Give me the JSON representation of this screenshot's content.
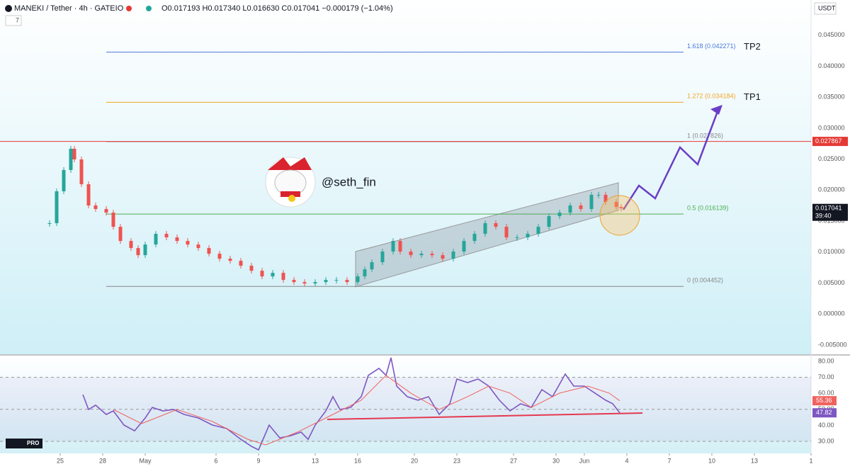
{
  "chart_data": [
    {
      "type": "candlestick",
      "title": "MANEKI / Tether · 4h · GATEIO",
      "subtitle": "O0.017193 H0.017340 L0.016630 C0.017041 −0.000179 (−1.04%)",
      "indicator_count": "7",
      "currency": "USDT",
      "watermark": "@seth_fin",
      "logo": "PRO",
      "x": [
        -0.75,
        -0.25,
        0.25,
        0.75,
        1,
        1.5,
        2,
        2.5,
        3.25,
        3.75,
        4.25,
        5,
        5.5,
        6,
        6.75,
        7.5,
        8.25,
        9,
        9.75,
        10.5,
        11.25,
        12,
        12.75,
        13.5,
        14.25,
        15,
        15.75,
        16.5,
        17.25,
        18,
        18.75,
        19.5,
        20.25,
        21,
        21.5,
        22,
        22.75,
        23.5,
        24,
        24.75,
        25.5,
        26.25,
        27,
        27.75,
        28.5,
        29.25,
        30,
        30.75,
        31.5,
        32.25,
        33,
        33.75,
        34.5,
        35.25,
        36,
        36.75,
        37.5,
        38,
        38.5,
        39.25,
        39.6
      ],
      "values": [
        0.01466,
        0.01981,
        0.02325,
        0.02668,
        0.02496,
        0.02095,
        0.01752,
        0.01695,
        0.01637,
        0.01408,
        0.01179,
        0.01065,
        0.0095,
        0.01122,
        0.01294,
        0.01237,
        0.01179,
        0.01122,
        0.01065,
        0.00973,
        0.00893,
        0.00859,
        0.00779,
        0.00698,
        0.00607,
        0.00664,
        0.0055,
        0.00515,
        0.00492,
        0.00515,
        0.0055,
        0.0055,
        0.00515,
        0.00607,
        0.00721,
        0.00836,
        0.01008,
        0.01179,
        0.01008,
        0.0095,
        0.00973,
        0.0095,
        0.00893,
        0.01008,
        0.01179,
        0.01294,
        0.01466,
        0.01408,
        0.01237,
        0.01237,
        0.01294,
        0.01408,
        0.0158,
        0.01637,
        0.01752,
        0.01695,
        0.01924,
        0.01924,
        0.01809,
        0.01729,
        0.017041
      ],
      "up_color": "#26a69a",
      "down_color": "#ef5350",
      "xlim": [
        -4.25,
        53
      ],
      "xticks": [
        {
          "value": 0,
          "label": "25"
        },
        {
          "value": 3,
          "label": "28"
        },
        {
          "value": 6,
          "label": "May"
        },
        {
          "value": 11,
          "label": "6"
        },
        {
          "value": 14,
          "label": "9"
        },
        {
          "value": 18,
          "label": "13"
        },
        {
          "value": 21,
          "label": "16"
        },
        {
          "value": 25,
          "label": "20"
        },
        {
          "value": 28,
          "label": "23"
        },
        {
          "value": 32,
          "label": "27"
        },
        {
          "value": 35,
          "label": "30"
        },
        {
          "value": 37,
          "label": "Jun"
        },
        {
          "value": 40,
          "label": "4"
        },
        {
          "value": 43,
          "label": "7"
        },
        {
          "value": 46,
          "label": "10"
        },
        {
          "value": 49,
          "label": "13"
        },
        {
          "value": 53,
          "label": "1"
        }
      ],
      "ylim": [
        -0.0065,
        0.0507
      ],
      "yticks": [
        {
          "value": -0.005,
          "label": "-0.005000"
        },
        {
          "value": 0,
          "label": "0.000000"
        },
        {
          "value": 0.005,
          "label": "0.005000"
        },
        {
          "value": 0.01,
          "label": "0.010000"
        },
        {
          "value": 0.015,
          "label": "0.015000"
        },
        {
          "value": 0.02,
          "label": "0.020000"
        },
        {
          "value": 0.025,
          "label": "0.025000"
        },
        {
          "value": 0.03,
          "label": "0.030000"
        },
        {
          "value": 0.035,
          "label": "0.035000"
        },
        {
          "value": 0.04,
          "label": "0.040000"
        },
        {
          "value": 0.045,
          "label": "0.045000"
        }
      ],
      "fib_levels": [
        {
          "label": "1.618 (0.042271)",
          "value": 0.042271,
          "color": "#4a78d8"
        },
        {
          "label": "1.272 (0.034184)",
          "value": 0.034184,
          "color": "#f5a623"
        },
        {
          "label": "1 (0.027826)",
          "value": 0.027826,
          "color": "#888888"
        },
        {
          "label": "0.5 (0.016139)",
          "value": 0.016139,
          "color": "#4caf50"
        },
        {
          "label": "0 (0.004452)",
          "value": 0.004452,
          "color": "#888888"
        }
      ],
      "annotations": [
        {
          "text": "TP2",
          "value": 0.042271
        },
        {
          "text": "TP1",
          "value": 0.034184
        }
      ],
      "price_tags": [
        {
          "value": 0.027867,
          "color": "#e53935"
        },
        {
          "value": 0.017041,
          "color": "#131722",
          "countdown": "39:40"
        }
      ]
    },
    {
      "type": "line",
      "xlim": [
        -4.25,
        53
      ],
      "ylim": [
        22.5,
        83.5
      ],
      "yticks": [
        {
          "value": 30,
          "label": "30.00"
        },
        {
          "value": 40,
          "label": "40.00"
        },
        {
          "value": 50,
          "label": "50.00"
        },
        {
          "value": 60,
          "label": "60.00"
        },
        {
          "value": 70,
          "label": "70.00"
        },
        {
          "value": 80,
          "label": "80.00"
        }
      ],
      "series": [
        {
          "color": "#7e57c2",
          "x": [
            1.6,
            2,
            2.5,
            3.25,
            3.75,
            4.5,
            5.25,
            6,
            6.5,
            7.25,
            8,
            8.75,
            9.75,
            10.75,
            11.75,
            12.75,
            13.5,
            14,
            14.75,
            15.5,
            16.25,
            17,
            17.5,
            18,
            18.75,
            19.25,
            19.75,
            20.5,
            21.25,
            21.75,
            22.5,
            23,
            23.35,
            23.75,
            24.5,
            25.25,
            26,
            26.75,
            27.5,
            28,
            28.75,
            29.5,
            30.25,
            31,
            31.75,
            32.5,
            33.25,
            34,
            34.75,
            35.65,
            36.25,
            37,
            37.75,
            38.5,
            39,
            39.5
          ],
          "values": [
            59.2,
            49.9,
            52.6,
            46.8,
            49.0,
            40.2,
            36.6,
            44.6,
            51.2,
            49.0,
            49.9,
            46.8,
            44.6,
            40.2,
            38.0,
            31.3,
            26.9,
            24.7,
            40.2,
            32.2,
            33.5,
            35.8,
            31.3,
            40.2,
            49.0,
            57.9,
            49.9,
            51.2,
            57.9,
            71.2,
            75.6,
            71.2,
            82.2,
            64.5,
            57.9,
            55.7,
            57.9,
            46.8,
            53.5,
            68.9,
            66.7,
            68.9,
            64.5,
            55.7,
            49.0,
            53.5,
            51.2,
            62.3,
            57.9,
            72.0,
            64.5,
            64.5,
            60.1,
            55.7,
            53.5,
            47.82
          ]
        },
        {
          "color": "#f0625e",
          "x": [
            3.75,
            5.75,
            8.25,
            10.75,
            13.25,
            14.5,
            16.75,
            19.25,
            21.25,
            23,
            24.75,
            26.75,
            28.75,
            30.25,
            31.75,
            33.25,
            35.25,
            37.25,
            38.75,
            39.5
          ],
          "values": [
            49.9,
            41.1,
            49.9,
            42.4,
            31.3,
            27.8,
            35.8,
            46.8,
            55.7,
            71.2,
            60.1,
            49.9,
            57.9,
            64.5,
            60.1,
            51.2,
            60.1,
            64.5,
            60.1,
            55.36
          ]
        }
      ],
      "price_tags": [
        {
          "value": 55.36,
          "color": "#f0625e"
        },
        {
          "value": 47.82,
          "color": "#7e57c2"
        }
      ]
    }
  ]
}
